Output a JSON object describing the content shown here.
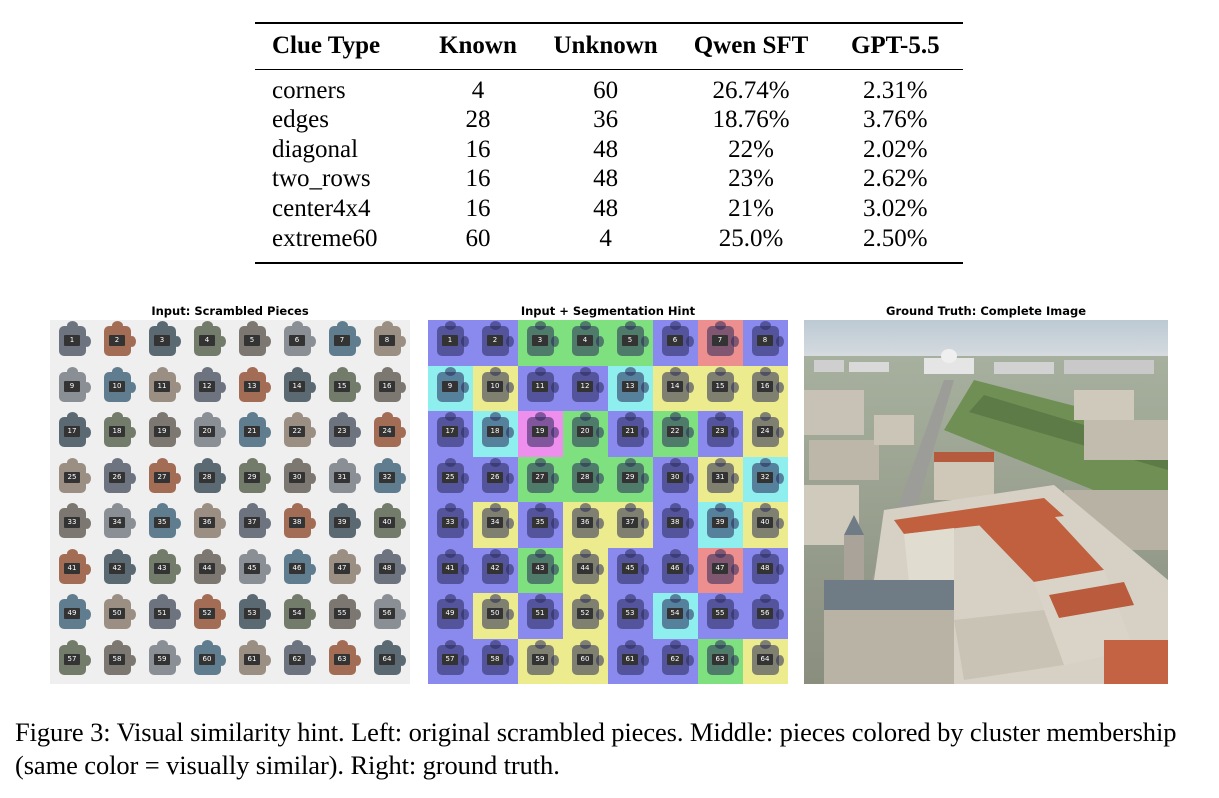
{
  "table": {
    "headers": [
      "Clue Type",
      "Known",
      "Unknown",
      "Qwen SFT",
      "GPT-5.5"
    ],
    "rows": [
      [
        "corners",
        "4",
        "60",
        "26.74%",
        "2.31%"
      ],
      [
        "edges",
        "28",
        "36",
        "18.76%",
        "3.76%"
      ],
      [
        "diagonal",
        "16",
        "48",
        "22%",
        "2.02%"
      ],
      [
        "two_rows",
        "16",
        "48",
        "23%",
        "2.62%"
      ],
      [
        "center4x4",
        "16",
        "48",
        "21%",
        "3.02%"
      ],
      [
        "extreme60",
        "60",
        "4",
        "25.0%",
        "2.50%"
      ]
    ]
  },
  "figure": {
    "panel_titles": {
      "scrambled": "Input: Scrambled Pieces",
      "hint": "Input + Segmentation Hint",
      "truth": "Ground Truth: Complete Image"
    },
    "piece_numbers": [
      "1",
      "2",
      "3",
      "4",
      "5",
      "6",
      "7",
      "8",
      "9",
      "10",
      "11",
      "12",
      "13",
      "14",
      "15",
      "16",
      "17",
      "18",
      "19",
      "20",
      "21",
      "22",
      "23",
      "24",
      "25",
      "26",
      "27",
      "28",
      "29",
      "30",
      "31",
      "32",
      "33",
      "34",
      "35",
      "36",
      "37",
      "38",
      "39",
      "40",
      "41",
      "42",
      "43",
      "44",
      "45",
      "46",
      "47",
      "48",
      "49",
      "50",
      "51",
      "52",
      "53",
      "54",
      "55",
      "56",
      "57",
      "58",
      "59",
      "60",
      "61",
      "62",
      "63",
      "64"
    ],
    "cluster_colors": {
      "blue": "#8a8aee",
      "green": "#7fe07f",
      "yellow": "#ecec8f",
      "cyan": "#8feeee",
      "red": "#ee8f8f",
      "magenta": "#ee8fee"
    },
    "cluster_rows": [
      [
        "blue",
        "blue",
        "green",
        "green",
        "green",
        "blue",
        "red",
        "blue"
      ],
      [
        "cyan",
        "yellow",
        "blue",
        "blue",
        "cyan",
        "yellow",
        "yellow",
        "yellow"
      ],
      [
        "blue",
        "cyan",
        "magenta",
        "green",
        "blue",
        "green",
        "blue",
        "yellow"
      ],
      [
        "blue",
        "blue",
        "green",
        "green",
        "green",
        "blue",
        "yellow",
        "cyan"
      ],
      [
        "blue",
        "yellow",
        "blue",
        "yellow",
        "yellow",
        "blue",
        "cyan",
        "yellow"
      ],
      [
        "blue",
        "blue",
        "green",
        "yellow",
        "blue",
        "blue",
        "red",
        "blue"
      ],
      [
        "blue",
        "yellow",
        "blue",
        "yellow",
        "blue",
        "cyan",
        "blue",
        "blue"
      ],
      [
        "blue",
        "blue",
        "yellow",
        "yellow",
        "blue",
        "blue",
        "green",
        "yellow"
      ]
    ]
  },
  "caption": {
    "text": "Figure 3: Visual similarity hint. Left: original scrambled pieces. Middle: pieces colored by cluster membership (same color = visually similar). Right: ground truth."
  }
}
